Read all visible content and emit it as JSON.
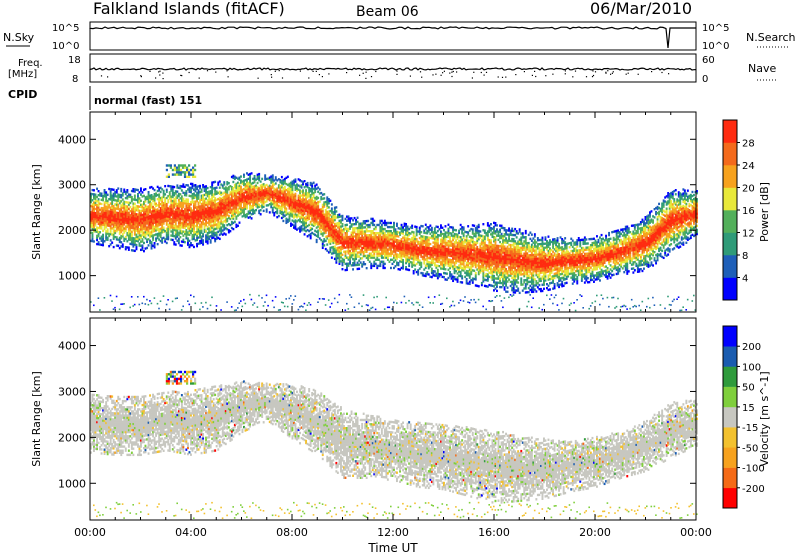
{
  "header": {
    "station": "Falkland Islands (fitACF)",
    "beam": "Beam 06",
    "date": "06/Mar/2010"
  },
  "top_panels": {
    "nsky_label": "N.Sky",
    "nsky_ticks": [
      "10^5",
      "10^0"
    ],
    "nsearch_label": "N.Search",
    "nsearch_ticks": [
      "10^5",
      "10^0"
    ],
    "freq_label": [
      "Freq.",
      "[MHz]"
    ],
    "freq_ticks": [
      "18",
      "8"
    ],
    "nave_label": "Nave",
    "nave_ticks": [
      "60",
      "0"
    ],
    "cpid_label": "CPID",
    "cpid_value": "normal (fast) 151"
  },
  "chart_data": [
    {
      "type": "heatmap",
      "name": "power",
      "ylabel": "Slant Range [km]",
      "ylim": [
        200,
        4600
      ],
      "yticks": [
        "1000",
        "2000",
        "3000",
        "4000"
      ],
      "xlabel": "",
      "xlim": [
        0,
        24
      ],
      "colorbar": {
        "label": "Power [dB]",
        "range": [
          0,
          32
        ],
        "ticks": [
          "4",
          "8",
          "12",
          "16",
          "20",
          "24",
          "28"
        ],
        "colors": [
          "#0000ff",
          "#1e5fb8",
          "#2f9b78",
          "#53b05b",
          "#e8e83a",
          "#f7a21e",
          "#f46a1c",
          "#ff2b10"
        ]
      },
      "bands": [
        {
          "t": 0.0,
          "c": 2300,
          "w": 600
        },
        {
          "t": 1.0,
          "c": 2250,
          "w": 650
        },
        {
          "t": 2.0,
          "c": 2200,
          "w": 700
        },
        {
          "t": 3.0,
          "c": 2350,
          "w": 650
        },
        {
          "t": 4.0,
          "c": 2300,
          "w": 700
        },
        {
          "t": 5.0,
          "c": 2400,
          "w": 650
        },
        {
          "t": 6.0,
          "c": 2700,
          "w": 550
        },
        {
          "t": 7.0,
          "c": 2800,
          "w": 400
        },
        {
          "t": 8.0,
          "c": 2600,
          "w": 550
        },
        {
          "t": 9.0,
          "c": 2350,
          "w": 650
        },
        {
          "t": 10.0,
          "c": 1700,
          "w": 600
        },
        {
          "t": 11.0,
          "c": 1700,
          "w": 550
        },
        {
          "t": 12.0,
          "c": 1650,
          "w": 500
        },
        {
          "t": 13.0,
          "c": 1550,
          "w": 550
        },
        {
          "t": 14.0,
          "c": 1500,
          "w": 600
        },
        {
          "t": 15.0,
          "c": 1450,
          "w": 650
        },
        {
          "t": 16.0,
          "c": 1400,
          "w": 750
        },
        {
          "t": 17.0,
          "c": 1300,
          "w": 700
        },
        {
          "t": 18.0,
          "c": 1250,
          "w": 600
        },
        {
          "t": 19.0,
          "c": 1300,
          "w": 500
        },
        {
          "t": 20.0,
          "c": 1350,
          "w": 500
        },
        {
          "t": 21.0,
          "c": 1500,
          "w": 500
        },
        {
          "t": 22.0,
          "c": 1700,
          "w": 600
        },
        {
          "t": 23.0,
          "c": 2200,
          "w": 700
        },
        {
          "t": 24.0,
          "c": 2350,
          "w": 500
        }
      ]
    },
    {
      "type": "heatmap",
      "name": "velocity",
      "ylabel": "Slant Range [km]",
      "ylim": [
        200,
        4600
      ],
      "yticks": [
        "1000",
        "2000",
        "3000",
        "4000"
      ],
      "xlabel": "Time UT",
      "xlim": [
        0,
        24
      ],
      "xticks": [
        "00:00",
        "04:00",
        "08:00",
        "12:00",
        "16:00",
        "20:00",
        "00:00"
      ],
      "colorbar": {
        "label": "Velocity [m s^-1]",
        "range": [
          -250,
          250
        ],
        "ticks": [
          "200",
          "100",
          "50",
          "15",
          "-15",
          "-50",
          "-100",
          "-200"
        ],
        "colors": [
          "#ff0000",
          "#f56a16",
          "#f7a21e",
          "#f3c12e",
          "#c7c7c0",
          "#7fcf3c",
          "#2f9b3c",
          "#1a5cb0",
          "#0000ff"
        ]
      },
      "bands": [
        {
          "t": 0.0,
          "c": 2300,
          "w": 650
        },
        {
          "t": 1.0,
          "c": 2250,
          "w": 650
        },
        {
          "t": 2.0,
          "c": 2250,
          "w": 650
        },
        {
          "t": 3.0,
          "c": 2350,
          "w": 650
        },
        {
          "t": 4.0,
          "c": 2300,
          "w": 700
        },
        {
          "t": 5.0,
          "c": 2400,
          "w": 700
        },
        {
          "t": 6.0,
          "c": 2650,
          "w": 550
        },
        {
          "t": 7.0,
          "c": 2750,
          "w": 400
        },
        {
          "t": 8.0,
          "c": 2550,
          "w": 600
        },
        {
          "t": 9.0,
          "c": 2300,
          "w": 700
        },
        {
          "t": 10.0,
          "c": 1850,
          "w": 750
        },
        {
          "t": 11.0,
          "c": 1800,
          "w": 700
        },
        {
          "t": 12.0,
          "c": 1700,
          "w": 650
        },
        {
          "t": 13.0,
          "c": 1600,
          "w": 700
        },
        {
          "t": 14.0,
          "c": 1550,
          "w": 700
        },
        {
          "t": 15.0,
          "c": 1450,
          "w": 750
        },
        {
          "t": 16.0,
          "c": 1350,
          "w": 800
        },
        {
          "t": 17.0,
          "c": 1300,
          "w": 700
        },
        {
          "t": 18.0,
          "c": 1300,
          "w": 650
        },
        {
          "t": 19.0,
          "c": 1350,
          "w": 550
        },
        {
          "t": 20.0,
          "c": 1450,
          "w": 550
        },
        {
          "t": 21.0,
          "c": 1600,
          "w": 500
        },
        {
          "t": 22.0,
          "c": 1800,
          "w": 550
        },
        {
          "t": 23.0,
          "c": 2150,
          "w": 600
        },
        {
          "t": 24.0,
          "c": 2300,
          "w": 500
        }
      ]
    }
  ]
}
